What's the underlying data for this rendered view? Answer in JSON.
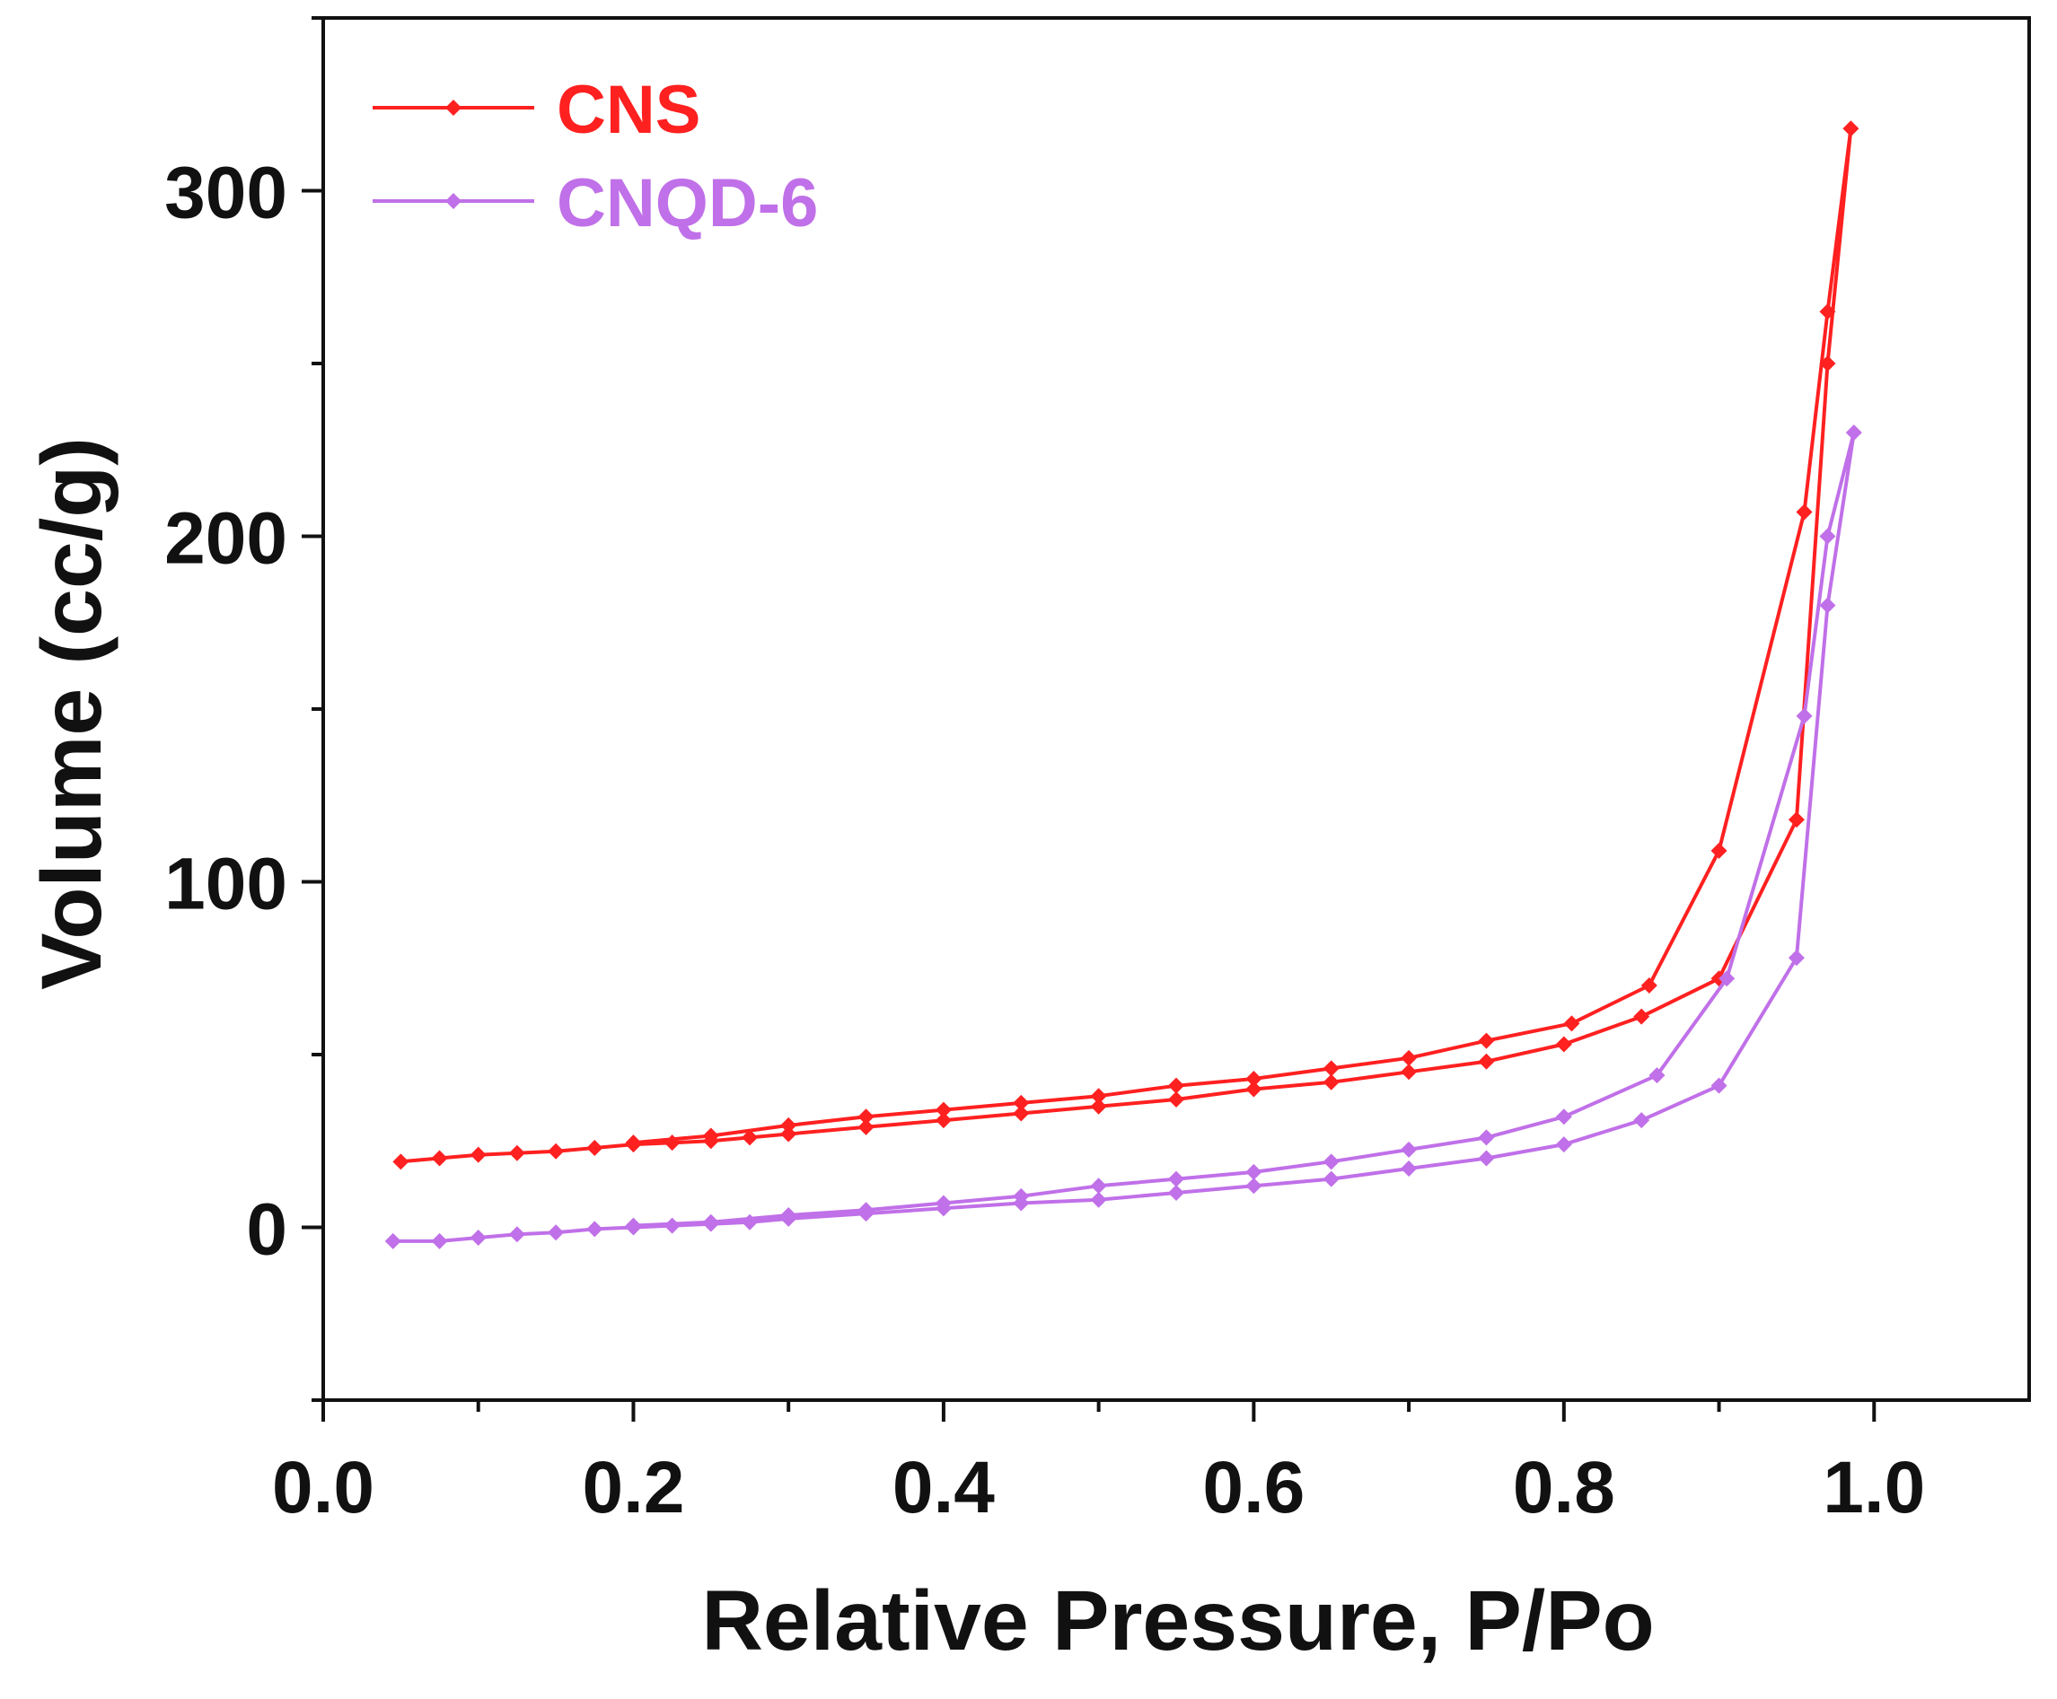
{
  "chart_data": {
    "type": "line",
    "title": "",
    "xlabel": "Relative Pressure, P/Po",
    "ylabel": "Volume (cc/g)",
    "xlim": [
      0.0,
      1.1
    ],
    "ylim": [
      -50,
      350
    ],
    "xticks": [
      0.0,
      0.2,
      0.4,
      0.6,
      0.8,
      1.0
    ],
    "xtick_labels": [
      "0.0",
      "0.2",
      "0.4",
      "0.6",
      "0.8",
      "1.0"
    ],
    "yticks": [
      0,
      100,
      200,
      300
    ],
    "ytick_labels": [
      "0",
      "100",
      "200",
      "300"
    ],
    "grid": false,
    "legend_position": "top-left",
    "series": [
      {
        "name": "CNS",
        "color": "#ff2020",
        "points": [
          [
            0.05,
            19
          ],
          [
            0.075,
            20
          ],
          [
            0.1,
            21
          ],
          [
            0.125,
            21.5
          ],
          [
            0.15,
            22
          ],
          [
            0.175,
            23
          ],
          [
            0.2,
            24
          ],
          [
            0.225,
            24.5
          ],
          [
            0.25,
            25
          ],
          [
            0.275,
            26
          ],
          [
            0.3,
            27
          ],
          [
            0.35,
            29
          ],
          [
            0.4,
            31
          ],
          [
            0.45,
            33
          ],
          [
            0.5,
            35
          ],
          [
            0.55,
            37
          ],
          [
            0.6,
            40
          ],
          [
            0.65,
            42
          ],
          [
            0.7,
            45
          ],
          [
            0.75,
            48
          ],
          [
            0.8,
            53
          ],
          [
            0.85,
            61
          ],
          [
            0.9,
            72
          ],
          [
            0.95,
            118
          ],
          [
            0.97,
            250
          ],
          [
            0.985,
            318
          ],
          [
            0.97,
            265
          ],
          [
            0.955,
            207
          ],
          [
            0.9,
            109
          ],
          [
            0.855,
            70
          ],
          [
            0.805,
            59
          ],
          [
            0.75,
            54
          ],
          [
            0.7,
            49
          ],
          [
            0.65,
            46
          ],
          [
            0.6,
            43
          ],
          [
            0.55,
            41
          ],
          [
            0.5,
            38
          ],
          [
            0.45,
            36
          ],
          [
            0.4,
            34
          ],
          [
            0.35,
            32
          ],
          [
            0.3,
            29.5
          ],
          [
            0.25,
            26.5
          ],
          [
            0.2,
            24.5
          ]
        ]
      },
      {
        "name": "CNQD-6",
        "color": "#c070e8",
        "points": [
          [
            0.045,
            -4
          ],
          [
            0.075,
            -4
          ],
          [
            0.1,
            -3
          ],
          [
            0.125,
            -2
          ],
          [
            0.15,
            -1.5
          ],
          [
            0.175,
            -0.5
          ],
          [
            0.2,
            0
          ],
          [
            0.225,
            0.5
          ],
          [
            0.25,
            1
          ],
          [
            0.275,
            1.5
          ],
          [
            0.3,
            2.5
          ],
          [
            0.35,
            4
          ],
          [
            0.4,
            5.5
          ],
          [
            0.45,
            7
          ],
          [
            0.5,
            8
          ],
          [
            0.55,
            10
          ],
          [
            0.6,
            12
          ],
          [
            0.65,
            14
          ],
          [
            0.7,
            17
          ],
          [
            0.75,
            20
          ],
          [
            0.8,
            24
          ],
          [
            0.85,
            31
          ],
          [
            0.9,
            41
          ],
          [
            0.95,
            78
          ],
          [
            0.97,
            180
          ],
          [
            0.987,
            230
          ],
          [
            0.97,
            200
          ],
          [
            0.955,
            148
          ],
          [
            0.905,
            72
          ],
          [
            0.86,
            44
          ],
          [
            0.8,
            32
          ],
          [
            0.75,
            26
          ],
          [
            0.7,
            22.5
          ],
          [
            0.65,
            19
          ],
          [
            0.6,
            16
          ],
          [
            0.55,
            14
          ],
          [
            0.5,
            12
          ],
          [
            0.45,
            9
          ],
          [
            0.4,
            7
          ],
          [
            0.35,
            5
          ],
          [
            0.3,
            3.5
          ],
          [
            0.25,
            1.5
          ],
          [
            0.2,
            0.5
          ]
        ]
      }
    ]
  }
}
